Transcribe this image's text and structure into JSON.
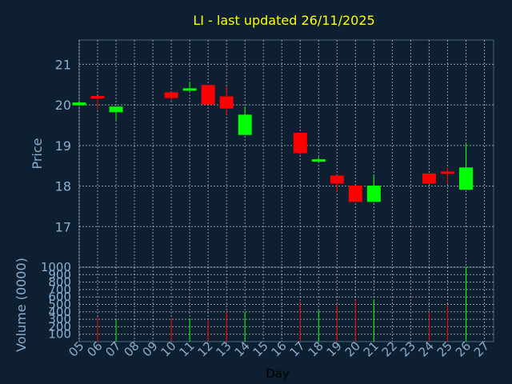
{
  "chart_data": {
    "type": "candlestick",
    "title": "LI - last updated 26/11/2025",
    "xlabel": "Day",
    "ylabel_price": "Price",
    "ylabel_volume": "Volume (0000)",
    "grid": true,
    "x_ticks": [
      "05",
      "06",
      "07",
      "08",
      "09",
      "10",
      "11",
      "12",
      "13",
      "14",
      "15",
      "16",
      "17",
      "18",
      "19",
      "20",
      "21",
      "22",
      "23",
      "24",
      "25",
      "26",
      "27"
    ],
    "price_ylim": [
      16.0,
      21.6
    ],
    "price_ticks": [
      17,
      18,
      19,
      20,
      21
    ],
    "volume_ylim": [
      0,
      1000
    ],
    "volume_ticks": [
      100,
      200,
      300,
      400,
      500,
      600,
      700,
      800,
      900,
      1000
    ],
    "colors": {
      "up": "#00ff00",
      "down": "#ff0000",
      "background": "#0d1f30",
      "grid": "#ffffff",
      "title": "#ffff00",
      "axis_text": "#8aaed0"
    },
    "candles": [
      {
        "day": "05",
        "open": 19.99,
        "high": 20.06,
        "low": 19.99,
        "close": 20.06,
        "volume": 0
      },
      {
        "day": "06",
        "open": 20.22,
        "high": 20.22,
        "low": 19.88,
        "close": 20.17,
        "volume": 330
      },
      {
        "day": "07",
        "open": 19.82,
        "high": 19.96,
        "low": 19.62,
        "close": 19.96,
        "volume": 290
      },
      {
        "day": "10",
        "open": 20.31,
        "high": 20.31,
        "low": 20.11,
        "close": 20.17,
        "volume": 310
      },
      {
        "day": "11",
        "open": 20.39,
        "high": 20.56,
        "low": 20.34,
        "close": 20.41,
        "volume": 310
      },
      {
        "day": "12",
        "open": 20.49,
        "high": 20.49,
        "low": 20.01,
        "close": 20.01,
        "volume": 300
      },
      {
        "day": "13",
        "open": 20.21,
        "high": 20.46,
        "low": 19.76,
        "close": 19.91,
        "volume": 400
      },
      {
        "day": "14",
        "open": 19.26,
        "high": 19.96,
        "low": 19.26,
        "close": 19.76,
        "volume": 400
      },
      {
        "day": "17",
        "open": 19.31,
        "high": 19.31,
        "low": 18.76,
        "close": 18.81,
        "volume": 540
      },
      {
        "day": "18",
        "open": 18.66,
        "high": 18.71,
        "low": 18.61,
        "close": 18.66,
        "volume": 420
      },
      {
        "day": "19",
        "open": 18.26,
        "high": 18.26,
        "low": 17.86,
        "close": 18.06,
        "volume": 490
      },
      {
        "day": "20",
        "open": 18.01,
        "high": 18.01,
        "low": 17.61,
        "close": 17.61,
        "volume": 560
      },
      {
        "day": "21",
        "open": 17.61,
        "high": 18.26,
        "low": 17.61,
        "close": 18.01,
        "volume": 570
      },
      {
        "day": "24",
        "open": 18.31,
        "high": 18.31,
        "low": 18.06,
        "close": 18.06,
        "volume": 400
      },
      {
        "day": "25",
        "open": 18.36,
        "high": 18.46,
        "low": 18.06,
        "close": 18.31,
        "volume": 490
      },
      {
        "day": "26",
        "open": 17.91,
        "high": 19.06,
        "low": 17.91,
        "close": 18.46,
        "volume": 1000
      }
    ]
  }
}
